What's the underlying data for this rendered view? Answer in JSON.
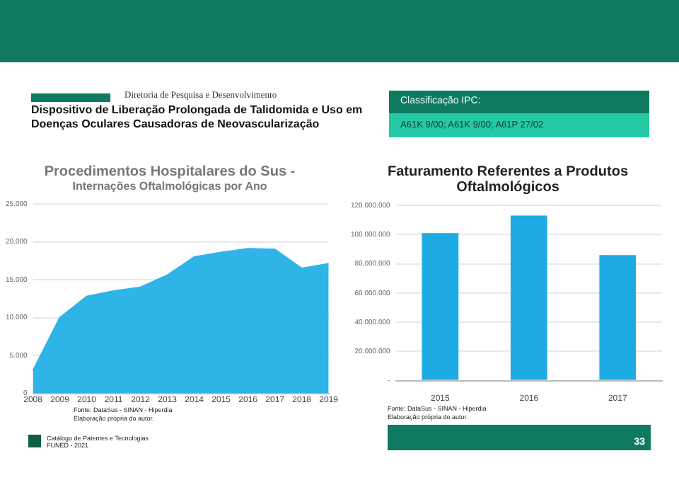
{
  "chart_data": [
    {
      "type": "other",
      "title": "Dispositivo de Liberação Prolongada de Talidomida e Uso em Doenças Oculares Causadoras de Neovascularização",
      "annotations": [
        "Diretoria de Pesquisa e Desenvolvimento",
        "Classificação IPC:",
        "A61K 9/00; A61K 9/00; A61P 27/02",
        "Catálogo de Patentes e Tecnologias",
        "FUNED - 2021",
        "33"
      ]
    },
    {
      "type": "area",
      "title": "Procedimentos  Hospitalares do Sus -",
      "subtitle": "Internações Oftalmológicas por Ano",
      "categories": [
        "2008",
        "2009",
        "2010",
        "2011",
        "2012",
        "2013",
        "2014",
        "2015",
        "2016",
        "2017",
        "2018",
        "2019"
      ],
      "series": [
        {
          "color": "#2fb4e8",
          "values": [
            3000,
            10000,
            12800,
            13500,
            14000,
            15600,
            18000,
            18600,
            19100,
            19000,
            16500,
            17100
          ]
        }
      ],
      "ylim": [
        0,
        25000
      ],
      "yticks": [
        0,
        {
          "value": 5000,
          "label": "5.000"
        },
        {
          "value": 10000,
          "label": "10.000"
        },
        {
          "value": 15000,
          "label": "15.000"
        },
        {
          "value": 20000,
          "label": "20.000"
        },
        {
          "value": 25000,
          "label": "25.000"
        }
      ],
      "grid": "y",
      "legend": false,
      "annotations": [
        "Fonte: DataSus - SINAN - Hiperdia",
        "Elaboração própria do autor."
      ]
    },
    {
      "type": "bar",
      "title": "Faturamento Referentes a Produtos Oftalmológicos",
      "categories": [
        "2015",
        "2016",
        "2017"
      ],
      "series": [
        {
          "color": "#1eaae2",
          "values": [
            101000000,
            113000000,
            86000000
          ]
        }
      ],
      "ylim": [
        0,
        120000000
      ],
      "yticks": [
        {
          "value": 0,
          "label": "-"
        },
        {
          "value": 20000000,
          "label": "20.000.000"
        },
        {
          "value": 40000000,
          "label": "40.000.000"
        },
        {
          "value": 60000000,
          "label": "60.000.000"
        },
        {
          "value": 80000000,
          "label": "80.000.000"
        },
        {
          "value": 100000000,
          "label": "100.000.000"
        },
        {
          "value": 120000000,
          "label": "120.000.000"
        }
      ],
      "grid": "y",
      "legend": false,
      "annotations": [
        "Fonte: DataSus - SINAN - Hiperdia",
        "Elaboração própria do autor."
      ]
    }
  ]
}
